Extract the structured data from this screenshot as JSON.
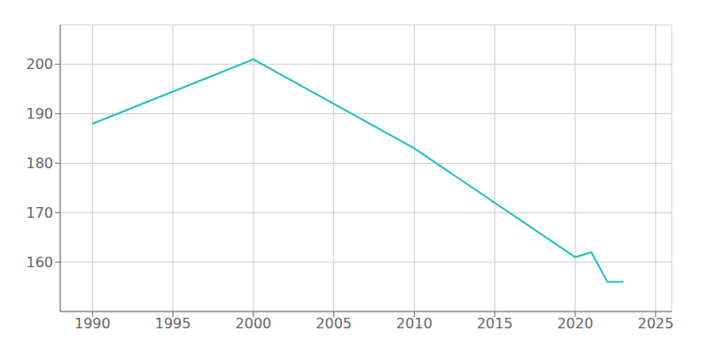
{
  "chart_data": {
    "type": "line",
    "x": [
      1990,
      2000,
      2010,
      2020,
      2021,
      2022,
      2023
    ],
    "values": [
      188,
      201,
      183,
      161,
      162,
      156,
      156
    ],
    "color": "#20c0c0",
    "xlim": [
      1988,
      2026
    ],
    "ylim": [
      150,
      208
    ],
    "xticks": [
      1990,
      1995,
      2000,
      2005,
      2010,
      2015,
      2020,
      2025
    ],
    "yticks": [
      160,
      170,
      180,
      190,
      200
    ],
    "grid": true
  }
}
